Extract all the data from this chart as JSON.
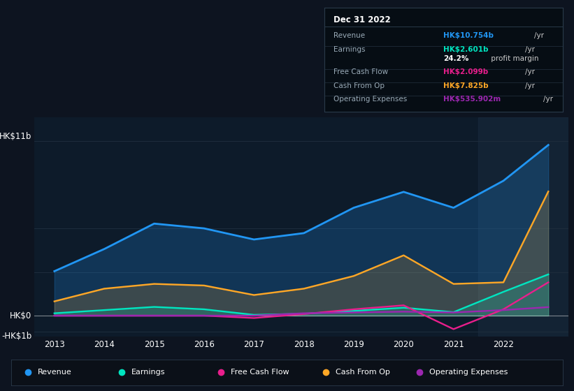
{
  "background_color": "#0d1420",
  "plot_bg_color": "#0d1b2a",
  "grid_color": "#1e2d3d",
  "years": [
    2013,
    2014,
    2015,
    2016,
    2017,
    2018,
    2019,
    2020,
    2021,
    2022,
    2022.9
  ],
  "revenue": [
    2.8,
    4.2,
    5.8,
    5.5,
    4.8,
    5.2,
    6.8,
    7.8,
    6.8,
    8.5,
    10.754
  ],
  "earnings": [
    0.15,
    0.35,
    0.55,
    0.4,
    0.05,
    0.12,
    0.3,
    0.5,
    0.22,
    1.5,
    2.601
  ],
  "free_cash_flow": [
    0.0,
    0.0,
    0.0,
    0.0,
    -0.15,
    0.1,
    0.4,
    0.65,
    -0.85,
    0.4,
    2.099
  ],
  "cash_from_op": [
    0.9,
    1.7,
    2.0,
    1.9,
    1.3,
    1.7,
    2.5,
    3.8,
    2.0,
    2.1,
    7.825
  ],
  "operating_expenses": [
    0.0,
    0.0,
    0.0,
    0.0,
    0.0,
    0.15,
    0.2,
    0.25,
    0.2,
    0.35,
    0.536
  ],
  "revenue_color": "#2196f3",
  "earnings_color": "#00e5c0",
  "free_cash_flow_color": "#e91e8c",
  "cash_from_op_color": "#ffa726",
  "operating_expenses_color": "#9c27b0",
  "ylim": [
    -1.3,
    12.5
  ],
  "xtick_years": [
    2013,
    2014,
    2015,
    2016,
    2017,
    2018,
    2019,
    2020,
    2021,
    2022
  ],
  "tooltip_title": "Dec 31 2022",
  "tooltip_bg": "#060d14",
  "tooltip_border": "#2a3a4a",
  "tooltip_rows": [
    {
      "label": "Revenue",
      "value": "HK$10.754b",
      "unit": "/yr",
      "color": "#2196f3"
    },
    {
      "label": "Earnings",
      "value": "HK$2.601b",
      "unit": "/yr",
      "color": "#00e5c0"
    },
    {
      "label": "",
      "value": "24.2%",
      "unit": " profit margin",
      "color": "#ffffff"
    },
    {
      "label": "Free Cash Flow",
      "value": "HK$2.099b",
      "unit": "/yr",
      "color": "#e91e8c"
    },
    {
      "label": "Cash From Op",
      "value": "HK$7.825b",
      "unit": "/yr",
      "color": "#ffa726"
    },
    {
      "label": "Operating Expenses",
      "value": "HK$535.902m",
      "unit": "/yr",
      "color": "#9c27b0"
    }
  ],
  "legend_items": [
    {
      "label": "Revenue",
      "color": "#2196f3"
    },
    {
      "label": "Earnings",
      "color": "#00e5c0"
    },
    {
      "label": "Free Cash Flow",
      "color": "#e91e8c"
    },
    {
      "label": "Cash From Op",
      "color": "#ffa726"
    },
    {
      "label": "Operating Expenses",
      "color": "#9c27b0"
    }
  ]
}
